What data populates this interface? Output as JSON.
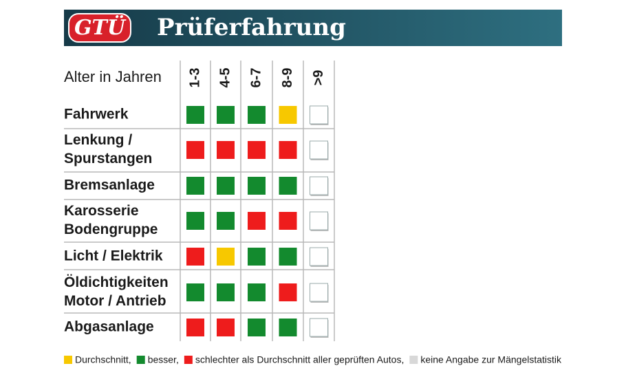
{
  "header": {
    "logo": "GTÜ",
    "title": "Prüferfahrung"
  },
  "table": {
    "column_label": "Alter in Jahren",
    "columns": [
      "1-3",
      "4-5",
      "6-7",
      "8-9",
      ">9"
    ],
    "rows": [
      {
        "label": [
          "Fahrwerk"
        ],
        "cells": [
          "#138a2e",
          "#138a2e",
          "#138a2e",
          "#f7c800",
          "#ffffff"
        ]
      },
      {
        "label": [
          "Lenkung /",
          "Spurstangen"
        ],
        "cells": [
          "#ee1c1c",
          "#ee1c1c",
          "#ee1c1c",
          "#ee1c1c",
          "#ffffff"
        ]
      },
      {
        "label": [
          "Bremsanlage"
        ],
        "cells": [
          "#138a2e",
          "#138a2e",
          "#138a2e",
          "#138a2e",
          "#ffffff"
        ]
      },
      {
        "label": [
          "Karosserie",
          "Bodengruppe"
        ],
        "cells": [
          "#138a2e",
          "#138a2e",
          "#ee1c1c",
          "#ee1c1c",
          "#ffffff"
        ]
      },
      {
        "label": [
          "Licht / Elektrik"
        ],
        "cells": [
          "#ee1c1c",
          "#f7c800",
          "#138a2e",
          "#138a2e",
          "#ffffff"
        ]
      },
      {
        "label": [
          "Öldichtigkeiten",
          "Motor / Antrieb"
        ],
        "cells": [
          "#138a2e",
          "#138a2e",
          "#138a2e",
          "#ee1c1c",
          "#ffffff"
        ]
      },
      {
        "label": [
          "Abgasanlage"
        ],
        "cells": [
          "#ee1c1c",
          "#ee1c1c",
          "#138a2e",
          "#138a2e",
          "#ffffff"
        ]
      }
    ]
  },
  "legend": [
    {
      "color": "#f7c800",
      "label": "Durchschnitt,"
    },
    {
      "color": "#138a2e",
      "label": "besser,"
    },
    {
      "color": "#ee1c1c",
      "label": "schlechter als Durchschnitt aller geprüften Autos,"
    },
    {
      "color": "#d8d8d8",
      "label": "keine Angabe zur Mängelstatistik"
    }
  ]
}
